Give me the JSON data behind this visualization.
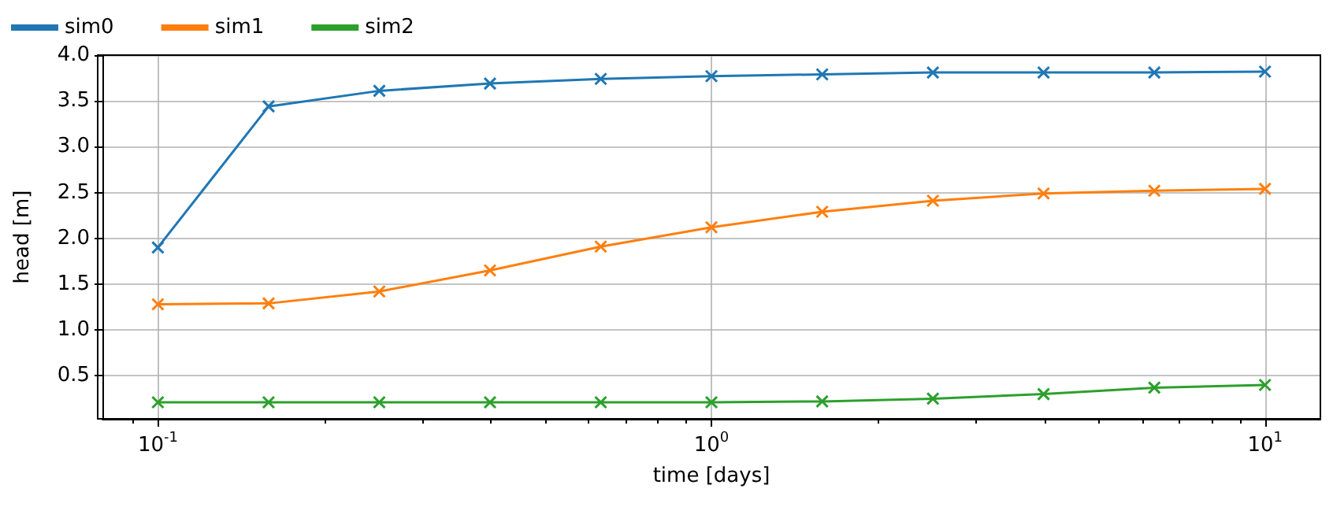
{
  "chart_data": {
    "type": "line",
    "xlabel": "time [days]",
    "ylabel": "head [m]",
    "x": [
      0.1,
      0.1585,
      0.2512,
      0.3981,
      0.631,
      1,
      1.585,
      2.512,
      3.981,
      6.31,
      10
    ],
    "series": [
      {
        "name": "sim0",
        "color": "#1f77b4",
        "values": [
          1.9,
          3.44,
          3.61,
          3.69,
          3.74,
          3.77,
          3.79,
          3.81,
          3.81,
          3.81,
          3.82
        ]
      },
      {
        "name": "sim1",
        "color": "#ff7f0e",
        "values": [
          1.28,
          1.29,
          1.42,
          1.65,
          1.91,
          2.12,
          2.29,
          2.41,
          2.49,
          2.52,
          2.54
        ]
      },
      {
        "name": "sim2",
        "color": "#2ca02c",
        "values": [
          0.21,
          0.21,
          0.21,
          0.21,
          0.21,
          0.21,
          0.22,
          0.25,
          0.3,
          0.37,
          0.4
        ]
      }
    ],
    "log": "x",
    "xlim": [
      0.0794,
      12.59
    ],
    "xticks": [
      {
        "value": 0.09,
        "label": null
      },
      {
        "value": 0.1,
        "label": "10$^{-1}$"
      },
      {
        "value": 0.2,
        "label": null
      },
      {
        "value": 0.3,
        "label": null
      },
      {
        "value": 0.4,
        "label": null
      },
      {
        "value": 0.5,
        "label": null
      },
      {
        "value": 0.6,
        "label": null
      },
      {
        "value": 0.7,
        "label": null
      },
      {
        "value": 0.8,
        "label": null
      },
      {
        "value": 0.9,
        "label": null
      },
      {
        "value": 1,
        "label": "10$^{0}$"
      },
      {
        "value": 2,
        "label": null
      },
      {
        "value": 3,
        "label": null
      },
      {
        "value": 4,
        "label": null
      },
      {
        "value": 5,
        "label": null
      },
      {
        "value": 6,
        "label": null
      },
      {
        "value": 7,
        "label": null
      },
      {
        "value": 8,
        "label": null
      },
      {
        "value": 9,
        "label": null
      },
      {
        "value": 10,
        "label": "10$^{1}$"
      }
    ],
    "ylim": [
      0.03,
      4.0
    ],
    "yticks": [
      0.5,
      {
        "value": 1,
        "label": "1.0"
      },
      1.5,
      {
        "value": 2,
        "label": "2.0"
      },
      2.5,
      {
        "value": 3,
        "label": "3.0"
      },
      3.5,
      {
        "value": 4,
        "label": "4.0"
      }
    ],
    "grid": true,
    "legend": "top left",
    "marker": "cross",
    "line_style": "solid"
  }
}
